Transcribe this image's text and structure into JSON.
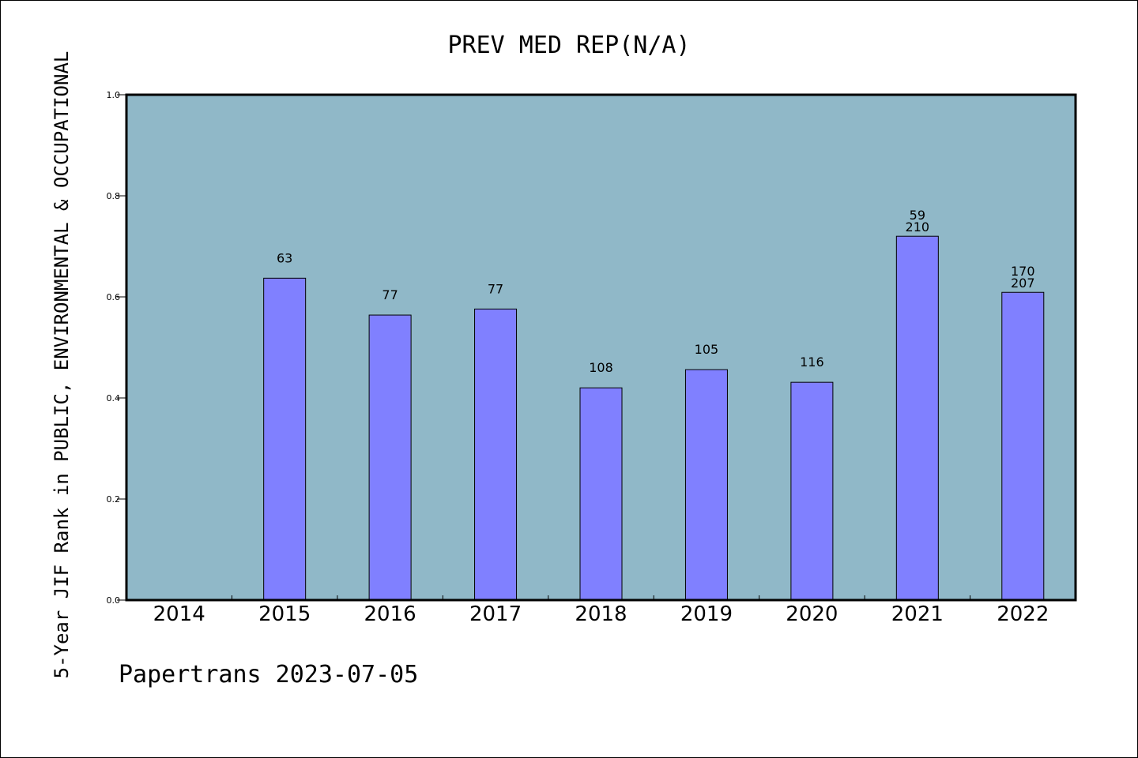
{
  "chart_data": {
    "type": "bar",
    "title": "PREV MED REP(N/A)",
    "xlabel": "",
    "ylabel": "5-Year JIF Rank in PUBLIC, ENVIRONMENTAL & OCCUPATIONAL",
    "categories": [
      "2014",
      "2015",
      "2016",
      "2017",
      "2018",
      "2019",
      "2020",
      "2021",
      "2022"
    ],
    "values": [
      null,
      0.637,
      0.564,
      0.576,
      0.42,
      0.456,
      0.431,
      0.72,
      0.609
    ],
    "bar_labels": [
      [],
      [
        "63"
      ],
      [
        "77"
      ],
      [
        "77"
      ],
      [
        "108"
      ],
      [
        "105"
      ],
      [
        "116"
      ],
      [
        "59",
        "210"
      ],
      [
        "170",
        "207"
      ]
    ],
    "ylim": [
      0,
      1.0
    ],
    "yticks": [
      "0.0",
      "0.2",
      "0.4",
      "0.6",
      "0.8",
      "1.0"
    ],
    "ytick_values": [
      0,
      0.2,
      0.4,
      0.6,
      0.8,
      1.0
    ],
    "grid": false,
    "legend": "none",
    "colors": {
      "plot_background": "#90b8c8",
      "bar_fill": "#8080ff",
      "bar_edge": "#000000"
    }
  },
  "footer": {
    "text": "Papertrans 2023-07-05"
  }
}
